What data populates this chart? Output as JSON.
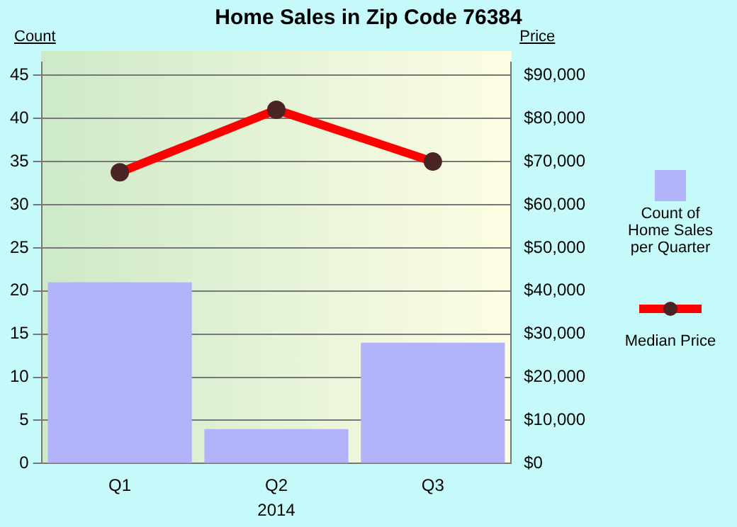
{
  "chart_data": {
    "type": "bar",
    "title": "Home Sales in Zip Code 76384",
    "xlabel": "2014",
    "ylabel": "Count",
    "y2label": "Price",
    "categories": [
      "Q1",
      "Q2",
      "Q3"
    ],
    "series": [
      {
        "name": "Count of Home Sales per Quarter",
        "color": "#b3b3fb",
        "values": [
          21,
          4,
          14
        ]
      },
      {
        "name": "Median Price",
        "type": "line",
        "axis": "y2",
        "color": "#ff0000",
        "values": [
          67500,
          82000,
          70000
        ]
      }
    ],
    "ylim": [
      0,
      46.5
    ],
    "yticks": [
      0,
      5,
      10,
      15,
      20,
      25,
      30,
      35,
      40,
      45
    ],
    "y2lim": [
      0,
      93000
    ],
    "y2ticks": [
      {
        "value": 0,
        "label": "$0"
      },
      {
        "value": 10000,
        "label": "$10,000"
      },
      {
        "value": 20000,
        "label": "$20,000"
      },
      {
        "value": 30000,
        "label": "$30,000"
      },
      {
        "value": 40000,
        "label": "$40,000"
      },
      {
        "value": 50000,
        "label": "$50,000"
      },
      {
        "value": 60000,
        "label": "$60,000"
      },
      {
        "value": 70000,
        "label": "$70,000"
      },
      {
        "value": 80000,
        "label": "$80,000"
      },
      {
        "value": 90000,
        "label": "$90,000"
      }
    ],
    "grid": "y",
    "legend": "right",
    "marker": "circle"
  }
}
